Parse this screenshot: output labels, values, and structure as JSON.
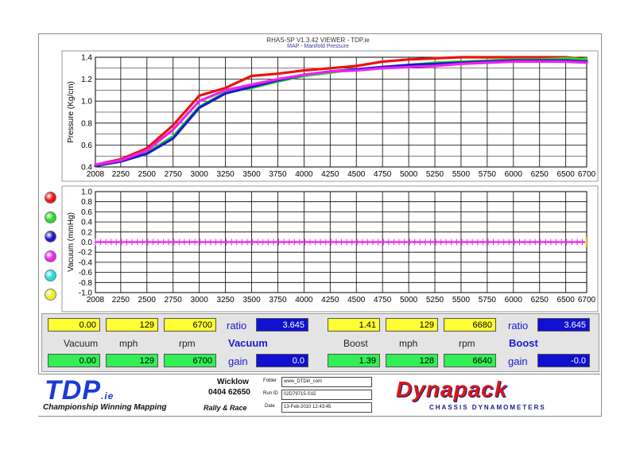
{
  "header": {
    "title": "RHAS-SP V1.3.42 VIEWER - TDP.ie",
    "subtitle": "MAP - Manifold Pressure"
  },
  "legend_dots": [
    {
      "name": "red",
      "color": "#ee1111"
    },
    {
      "name": "green",
      "color": "#22dd22"
    },
    {
      "name": "blue",
      "color": "#1a1acc"
    },
    {
      "name": "magenta",
      "color": "#ee22ee"
    },
    {
      "name": "cyan",
      "color": "#22dddd"
    },
    {
      "name": "yellow",
      "color": "#eeee22"
    }
  ],
  "chart_data": [
    {
      "type": "line",
      "ylabel": "Pressure (Kg/cm)",
      "xlabel": "",
      "x_ticks": [
        "2008",
        "2250",
        "2500",
        "2750",
        "3000",
        "3250",
        "3500",
        "3750",
        "4000",
        "4250",
        "4500",
        "4750",
        "5000",
        "5250",
        "5500",
        "5750",
        "6000",
        "6250",
        "6500",
        "6700"
      ],
      "y_ticks": [
        "0.4",
        "0.6",
        "0.8",
        "1.0",
        "1.2",
        "1.4"
      ],
      "xlim": [
        2008,
        6700
      ],
      "ylim": [
        0.4,
        1.4
      ],
      "grid": true,
      "series": [
        {
          "color": "#ee1111",
          "x": [
            2008,
            2250,
            2500,
            2750,
            3000,
            3250,
            3500,
            3750,
            4000,
            4250,
            4500,
            4750,
            5000,
            5250,
            5500,
            5750,
            6000,
            6250,
            6500,
            6700
          ],
          "y": [
            0.42,
            0.47,
            0.57,
            0.78,
            1.05,
            1.12,
            1.23,
            1.25,
            1.28,
            1.3,
            1.32,
            1.36,
            1.38,
            1.39,
            1.4,
            1.4,
            1.4,
            1.4,
            1.4,
            1.38
          ]
        },
        {
          "color": "#22dd22",
          "x": [
            2008,
            2250,
            2500,
            2750,
            3000,
            3250,
            3500,
            3750,
            4000,
            4250,
            4500,
            4750,
            5000,
            5250,
            5500,
            5750,
            6000,
            6250,
            6500,
            6700
          ],
          "y": [
            0.41,
            0.45,
            0.53,
            0.68,
            0.95,
            1.08,
            1.12,
            1.18,
            1.23,
            1.26,
            1.29,
            1.31,
            1.33,
            1.35,
            1.36,
            1.37,
            1.38,
            1.38,
            1.39,
            1.38
          ]
        },
        {
          "color": "#1a1acc",
          "x": [
            2008,
            2250,
            2500,
            2750,
            3000,
            3250,
            3500,
            3750,
            4000,
            4250,
            4500,
            4750,
            5000,
            5250,
            5500,
            5750,
            6000,
            6250,
            6500,
            6700
          ],
          "y": [
            0.41,
            0.45,
            0.52,
            0.66,
            0.94,
            1.07,
            1.13,
            1.19,
            1.24,
            1.27,
            1.29,
            1.31,
            1.33,
            1.34,
            1.35,
            1.36,
            1.37,
            1.37,
            1.37,
            1.36
          ]
        },
        {
          "color": "#ee22ee",
          "x": [
            2008,
            2250,
            2500,
            2750,
            3000,
            3250,
            3500,
            3750,
            4000,
            4250,
            4500,
            4750,
            5000,
            5250,
            5500,
            5750,
            6000,
            6250,
            6500,
            6700
          ],
          "y": [
            0.42,
            0.46,
            0.55,
            0.74,
            1.0,
            1.1,
            1.15,
            1.2,
            1.24,
            1.27,
            1.28,
            1.3,
            1.31,
            1.32,
            1.34,
            1.35,
            1.36,
            1.36,
            1.36,
            1.35
          ]
        }
      ]
    },
    {
      "type": "line",
      "ylabel": "Vacuum (mmHg)",
      "xlabel": "",
      "x_ticks": [
        "2008",
        "2250",
        "2500",
        "2750",
        "3000",
        "3250",
        "3500",
        "3750",
        "4000",
        "4250",
        "4500",
        "4750",
        "5000",
        "5250",
        "5500",
        "5750",
        "6000",
        "6250",
        "6500",
        "6700"
      ],
      "y_ticks": [
        "-1.0",
        "-0.8",
        "-0.6",
        "-0.4",
        "-0.2",
        "0.0",
        "0.2",
        "0.4",
        "0.6",
        "0.8",
        "1.0"
      ],
      "xlim": [
        2008,
        6700
      ],
      "ylim": [
        -1.0,
        1.0
      ],
      "grid": true,
      "series": [
        {
          "color": "#ee22ee",
          "x": [
            2008,
            6700
          ],
          "y": [
            0,
            0
          ]
        }
      ]
    }
  ],
  "data_panel": {
    "vacuum": {
      "row1": [
        "0.00",
        "129",
        "6700"
      ],
      "ratio_label": "ratio",
      "ratio_value": "3.645",
      "headers": [
        "Vacuum",
        "mph",
        "rpm"
      ],
      "section_label": "Vacuum",
      "row2": [
        "0.00",
        "129",
        "6700"
      ],
      "gain_label": "gain",
      "gain_value": "0.0"
    },
    "boost": {
      "row1": [
        "1.41",
        "129",
        "6680"
      ],
      "ratio_label": "ratio",
      "ratio_value": "3.645",
      "headers": [
        "Boost",
        "mph",
        "rpm"
      ],
      "section_label": "Boost",
      "row2": [
        "1.39",
        "128",
        "6640"
      ],
      "gain_label": "gain",
      "gain_value": "-0.0"
    }
  },
  "footer": {
    "logo_text": "TDP",
    "logo_suffix": ".ie",
    "tagline": "Championship Winning Mapping",
    "location": "Wicklow",
    "phone": "0404 62650",
    "rally": "Rally & Race",
    "folder_label": "Folder",
    "folder_value": "www_DTDirl_com",
    "run_label": "Run ID",
    "run_value": "02D79715-S15",
    "date_label": "Date",
    "date_value": "13-Feb-2010  12:43:45",
    "brand": "Dynapack",
    "brand_sub": "CHASSIS DYNAMOMETERS"
  }
}
